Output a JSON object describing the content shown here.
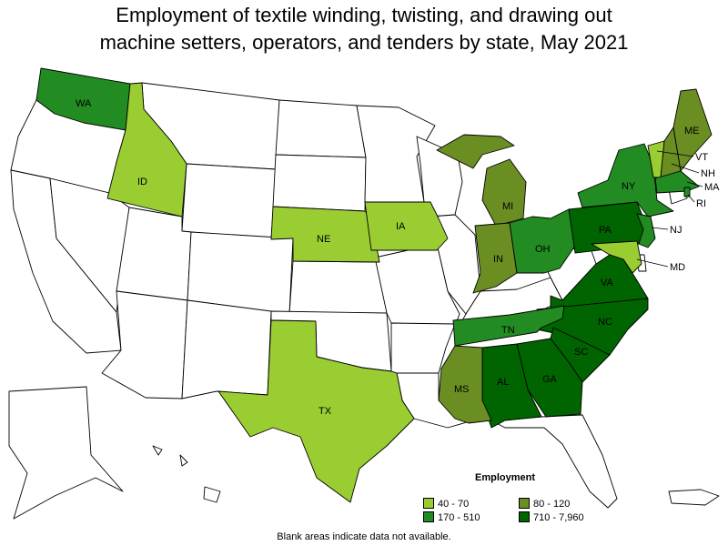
{
  "title": {
    "line1": "Employment of textile winding, twisting, and drawing out",
    "line2": "machine setters, operators, and tenders by state, May 2021"
  },
  "legend": {
    "title": "Employment",
    "bins": [
      {
        "label": "40 - 70",
        "color": "#9acd32"
      },
      {
        "label": "80 - 120",
        "color": "#6b8e23"
      },
      {
        "label": "170 - 510",
        "color": "#228b22"
      },
      {
        "label": "710 - 7,960",
        "color": "#006400"
      }
    ]
  },
  "footnote": "Blank areas indicate data not available.",
  "states": {
    "WA": {
      "label": "WA",
      "bin": "170 - 510"
    },
    "ID": {
      "label": "ID",
      "bin": "40 - 70"
    },
    "NE": {
      "label": "NE",
      "bin": "40 - 70"
    },
    "IA": {
      "label": "IA",
      "bin": "40 - 70"
    },
    "TX": {
      "label": "TX",
      "bin": "40 - 70"
    },
    "MI": {
      "label": "MI",
      "bin": "80 - 120"
    },
    "IN": {
      "label": "IN",
      "bin": "80 - 120"
    },
    "OH": {
      "label": "OH",
      "bin": "170 - 510"
    },
    "PA": {
      "label": "PA",
      "bin": "710 - 7,960"
    },
    "NY": {
      "label": "NY",
      "bin": "170 - 510"
    },
    "ME": {
      "label": "ME",
      "bin": "80 - 120"
    },
    "VT": {
      "label": "VT",
      "bin": "40 - 70"
    },
    "NH": {
      "label": "NH",
      "bin": "80 - 120"
    },
    "MA": {
      "label": "MA",
      "bin": "170 - 510"
    },
    "RI": {
      "label": "RI",
      "bin": "170 - 510"
    },
    "NJ": {
      "label": "NJ",
      "bin": "170 - 510"
    },
    "MD": {
      "label": "MD",
      "bin": "40 - 70"
    },
    "VA": {
      "label": "VA",
      "bin": "710 - 7,960"
    },
    "NC": {
      "label": "NC",
      "bin": "710 - 7,960"
    },
    "SC": {
      "label": "SC",
      "bin": "710 - 7,960"
    },
    "TN": {
      "label": "TN",
      "bin": "170 - 510"
    },
    "GA": {
      "label": "GA",
      "bin": "710 - 7,960"
    },
    "AL": {
      "label": "AL",
      "bin": "710 - 7,960"
    },
    "MS": {
      "label": "MS",
      "bin": "80 - 120"
    }
  }
}
